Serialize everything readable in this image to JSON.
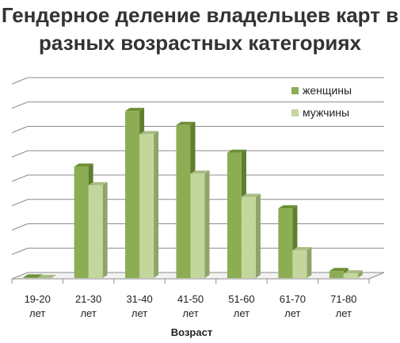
{
  "chart_data": {
    "type": "bar",
    "title": "Гендерное деление владельцев карт в разных возрастных категориях",
    "xlabel": "Возраст",
    "ylabel": "",
    "categories": [
      [
        "19-20",
        "лет"
      ],
      [
        "21-30",
        "лет"
      ],
      [
        "31-40",
        "лет"
      ],
      [
        "41-50",
        "лет"
      ],
      [
        "51-60",
        "лет"
      ],
      [
        "61-70",
        "лет"
      ],
      [
        "71-80",
        "лет"
      ]
    ],
    "series": [
      {
        "name": "женщины",
        "values": [
          0.2,
          48,
          72,
          66,
          54,
          30,
          3
        ]
      },
      {
        "name": "мужчины",
        "values": [
          0,
          40,
          62,
          45,
          35,
          12,
          2
        ]
      }
    ],
    "ylim": [
      0,
      84
    ],
    "grid": true,
    "legend_position": "top-right",
    "colors": {
      "women_front": "#8cad53",
      "women_side": "#5f7d2e",
      "women_top": "#6f8f37",
      "men_front": "#c3d69b",
      "men_side": "#8fa46a",
      "men_top": "#a9bd83",
      "grid": "#8c8c8c"
    }
  }
}
